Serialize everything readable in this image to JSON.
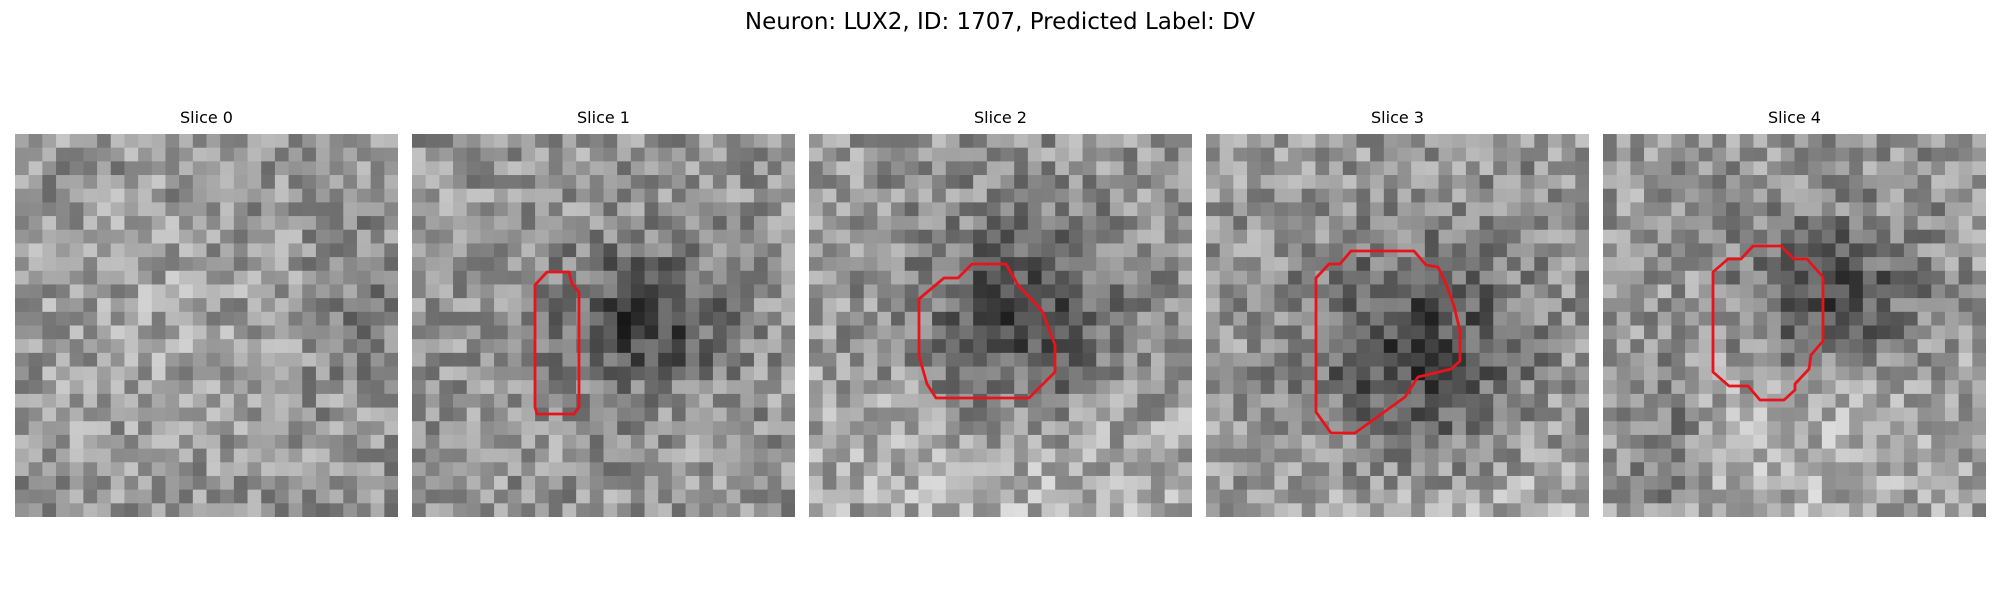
{
  "figure": {
    "title": "Neuron: LUX2, ID: 1707, Predicted Label: DV"
  },
  "panels": [
    {
      "title": "Slice 0",
      "has_contour": false,
      "dark_region": null,
      "bright_region": null
    },
    {
      "title": "Slice 1",
      "has_contour": true,
      "dark_region": [
        16.5,
        13,
        6,
        5
      ],
      "bright_region": null
    },
    {
      "title": "Slice 2",
      "has_contour": true,
      "dark_region": [
        15,
        13.5,
        7.5,
        7
      ],
      "bright_region": [
        15,
        24,
        18,
        10
      ]
    },
    {
      "title": "Slice 3",
      "has_contour": true,
      "dark_region": [
        15,
        16,
        8,
        8
      ],
      "bright_region": [
        19,
        27,
        14,
        9
      ]
    },
    {
      "title": "Slice 4",
      "has_contour": true,
      "dark_region": [
        16,
        11.5,
        6.5,
        5.5
      ],
      "bright_region": [
        14,
        22,
        16,
        10
      ]
    }
  ],
  "colors": {
    "contour": "#e8141c",
    "colormap": "grayscale"
  }
}
